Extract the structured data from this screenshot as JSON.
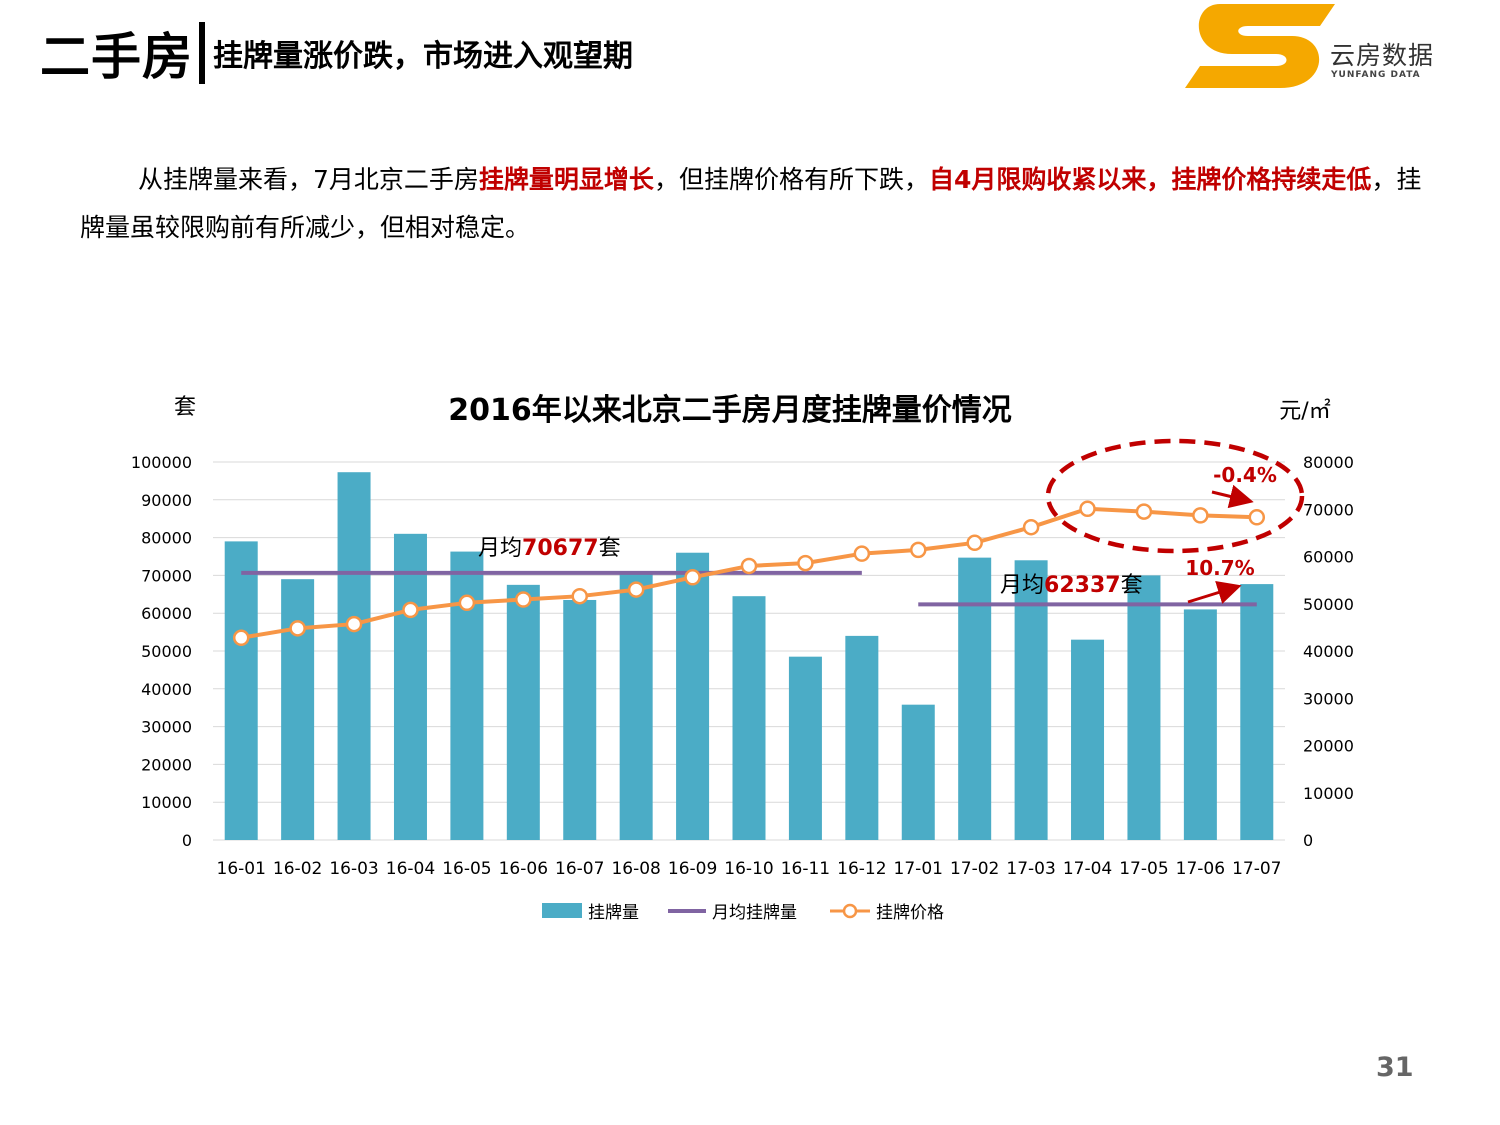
{
  "header": {
    "title": "二手房",
    "subtitle": "挂牌量涨价跌，市场进入观望期"
  },
  "logo": {
    "name": "云房数据",
    "sub": "YUNFANG DATA",
    "colors": {
      "orange": "#f5a800"
    }
  },
  "paragraph": {
    "p1": "从挂牌量来看，7月北京二手房",
    "h1": "挂牌量明显增长",
    "p2": "，但挂牌价格有所下跌，",
    "h2": "自4月限购收紧以来，挂牌价格持续走低",
    "p3": "，挂牌量虽较限购前有所减少，但相对稳定。"
  },
  "page_number": "31",
  "chart_data": {
    "type": "bar",
    "title": "2016年以来北京二手房月度挂牌量价情况",
    "ylabel": "套",
    "y2label": "元/㎡",
    "ylim": [
      0,
      100000
    ],
    "y2lim": [
      0,
      80000
    ],
    "yticks": [
      "0",
      "10000",
      "20000",
      "30000",
      "40000",
      "50000",
      "60000",
      "70000",
      "80000",
      "90000",
      "100000"
    ],
    "y2ticks": [
      "0",
      "10000",
      "20000",
      "30000",
      "40000",
      "50000",
      "60000",
      "70000",
      "80000"
    ],
    "categories": [
      "16-01",
      "16-02",
      "16-03",
      "16-04",
      "16-05",
      "16-06",
      "16-07",
      "16-08",
      "16-09",
      "16-10",
      "16-11",
      "16-12",
      "17-01",
      "17-02",
      "17-03",
      "17-04",
      "17-05",
      "17-06",
      "17-07"
    ],
    "series": [
      {
        "name": "挂牌量",
        "type": "bar",
        "axis": "left",
        "color": "#4bacc6",
        "values": [
          79000,
          69000,
          97300,
          81000,
          76300,
          67500,
          63500,
          70800,
          76000,
          64500,
          48500,
          54000,
          35800,
          74700,
          74000,
          53000,
          70000,
          61000,
          67700
        ]
      },
      {
        "name": "月均挂牌量",
        "type": "line",
        "axis": "left",
        "color": "#8064a2",
        "segments": [
          {
            "from": "16-01",
            "to": "16-12",
            "value": 70677
          },
          {
            "from": "17-01",
            "to": "17-07",
            "value": 62337
          }
        ]
      },
      {
        "name": "挂牌价格",
        "type": "line",
        "axis": "right",
        "color": "#f79646",
        "values": [
          42800,
          44800,
          45700,
          48700,
          50200,
          50900,
          51600,
          53000,
          55600,
          58000,
          58600,
          60600,
          61400,
          62900,
          66200,
          70100,
          69500,
          68700,
          68300
        ]
      }
    ],
    "annotations": {
      "avg1_prefix": "月均",
      "avg1_value": "70677",
      "avg1_suffix": "套",
      "avg2_prefix": "月均",
      "avg2_value": "62337",
      "avg2_suffix": "套",
      "pct1": "-0.4%",
      "pct2": "10.7%"
    },
    "legend": {
      "position": "bottom"
    },
    "grid": true
  }
}
